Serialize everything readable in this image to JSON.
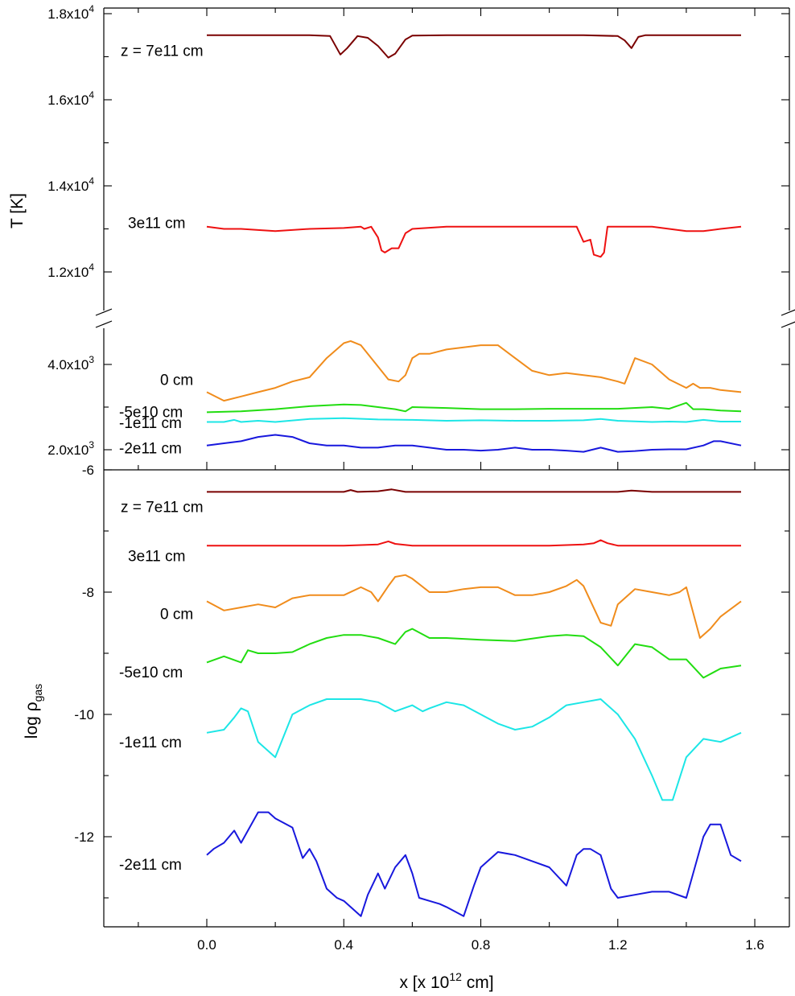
{
  "chart_data": [
    {
      "type": "line",
      "panel": "temperature",
      "ylabel": "T  [K]",
      "y_scale": "broken",
      "ylim_upper": [
        11000,
        18000
      ],
      "ylim_lower": [
        1800,
        4800
      ],
      "x_ticks": [
        0.0,
        0.4,
        0.8,
        1.2,
        1.6
      ],
      "y_ticks_upper": [
        {
          "mant": "1.2x10",
          "exp": "4",
          "value": 12000
        },
        {
          "mant": "1.4x10",
          "exp": "4",
          "value": 14000
        },
        {
          "mant": "1.6x10",
          "exp": "4",
          "value": 16000
        },
        {
          "mant": "1.8x10",
          "exp": "4",
          "value": 18000
        }
      ],
      "y_ticks_lower": [
        {
          "mant": "2.0x10",
          "exp": "3",
          "value": 2000
        },
        {
          "mant": "4.0x10",
          "exp": "3",
          "value": 4000
        }
      ],
      "series": [
        {
          "name": "z = 7e11 cm",
          "color": "#7a0000",
          "x": [
            0.0,
            0.1,
            0.2,
            0.3,
            0.36,
            0.39,
            0.41,
            0.44,
            0.47,
            0.5,
            0.53,
            0.55,
            0.58,
            0.6,
            0.7,
            0.8,
            0.9,
            1.0,
            1.1,
            1.2,
            1.22,
            1.24,
            1.26,
            1.28,
            1.35,
            1.45,
            1.56
          ],
          "y": [
            17500,
            17500,
            17500,
            17500,
            17480,
            17050,
            17200,
            17480,
            17440,
            17250,
            16980,
            17070,
            17400,
            17490,
            17500,
            17500,
            17500,
            17500,
            17500,
            17480,
            17380,
            17200,
            17460,
            17500,
            17500,
            17500,
            17500
          ]
        },
        {
          "name": "3e11 cm",
          "color": "#ee1111",
          "x": [
            0.0,
            0.05,
            0.1,
            0.2,
            0.3,
            0.4,
            0.45,
            0.46,
            0.48,
            0.5,
            0.51,
            0.52,
            0.54,
            0.56,
            0.58,
            0.6,
            0.7,
            0.8,
            0.9,
            1.0,
            1.08,
            1.1,
            1.12,
            1.13,
            1.15,
            1.16,
            1.17,
            1.2,
            1.3,
            1.35,
            1.4,
            1.45,
            1.5,
            1.56
          ],
          "y": [
            13050,
            13000,
            13000,
            12950,
            13000,
            13020,
            13050,
            13000,
            13050,
            12800,
            12500,
            12450,
            12550,
            12550,
            12900,
            13000,
            13050,
            13050,
            13050,
            13050,
            13050,
            12700,
            12750,
            12400,
            12350,
            12450,
            13050,
            13050,
            13050,
            13000,
            12950,
            12950,
            13000,
            13050
          ]
        },
        {
          "name": "0 cm",
          "color": "#f08c1c",
          "x": [
            0.0,
            0.05,
            0.1,
            0.15,
            0.2,
            0.25,
            0.3,
            0.35,
            0.4,
            0.42,
            0.45,
            0.5,
            0.53,
            0.56,
            0.58,
            0.6,
            0.62,
            0.65,
            0.7,
            0.75,
            0.8,
            0.85,
            0.9,
            0.95,
            1.0,
            1.05,
            1.1,
            1.15,
            1.2,
            1.22,
            1.25,
            1.3,
            1.35,
            1.4,
            1.42,
            1.44,
            1.47,
            1.5,
            1.56
          ],
          "y": [
            3350,
            3150,
            3250,
            3350,
            3450,
            3600,
            3700,
            4150,
            4500,
            4550,
            4450,
            3950,
            3650,
            3600,
            3750,
            4150,
            4250,
            4250,
            4350,
            4400,
            4450,
            4450,
            4150,
            3850,
            3750,
            3800,
            3750,
            3700,
            3600,
            3550,
            4150,
            4000,
            3650,
            3450,
            3550,
            3450,
            3450,
            3400,
            3350
          ]
        },
        {
          "name": "-5e10 cm",
          "color": "#22dd11",
          "x": [
            0.0,
            0.1,
            0.2,
            0.3,
            0.4,
            0.45,
            0.5,
            0.55,
            0.58,
            0.6,
            0.7,
            0.8,
            0.9,
            1.0,
            1.1,
            1.2,
            1.3,
            1.35,
            1.4,
            1.42,
            1.45,
            1.5,
            1.56
          ],
          "y": [
            2880,
            2900,
            2950,
            3020,
            3060,
            3050,
            3000,
            2950,
            2900,
            3000,
            2980,
            2950,
            2950,
            2960,
            2960,
            2960,
            3000,
            2960,
            3100,
            2950,
            2950,
            2920,
            2900
          ]
        },
        {
          "name": "-1e11 cm",
          "color": "#1ce6e6",
          "x": [
            0.0,
            0.05,
            0.08,
            0.1,
            0.15,
            0.2,
            0.3,
            0.4,
            0.5,
            0.6,
            0.7,
            0.8,
            0.9,
            1.0,
            1.1,
            1.15,
            1.2,
            1.3,
            1.35,
            1.4,
            1.45,
            1.5,
            1.56
          ],
          "y": [
            2650,
            2650,
            2700,
            2650,
            2680,
            2650,
            2720,
            2740,
            2710,
            2700,
            2680,
            2690,
            2680,
            2680,
            2690,
            2720,
            2680,
            2650,
            2660,
            2650,
            2700,
            2660,
            2660
          ]
        },
        {
          "name": "-2e11 cm",
          "color": "#1818dd",
          "x": [
            0.0,
            0.05,
            0.1,
            0.15,
            0.2,
            0.25,
            0.3,
            0.35,
            0.4,
            0.45,
            0.5,
            0.55,
            0.6,
            0.65,
            0.7,
            0.75,
            0.8,
            0.85,
            0.9,
            0.95,
            1.0,
            1.05,
            1.1,
            1.15,
            1.2,
            1.25,
            1.3,
            1.35,
            1.4,
            1.45,
            1.48,
            1.5,
            1.56
          ],
          "y": [
            2100,
            2150,
            2200,
            2300,
            2350,
            2300,
            2150,
            2100,
            2100,
            2050,
            2050,
            2100,
            2100,
            2050,
            2000,
            2000,
            1980,
            2000,
            2050,
            2000,
            2000,
            1980,
            1950,
            2050,
            1950,
            1970,
            2000,
            2010,
            2010,
            2100,
            2200,
            2200,
            2100
          ]
        }
      ]
    },
    {
      "type": "line",
      "panel": "density",
      "ylabel": "log ρ",
      "ylabel_sub": "gas",
      "ylim": [
        -13.5,
        -6
      ],
      "y_ticks": [
        {
          "label": "-6",
          "value": -6
        },
        {
          "label": "-8",
          "value": -8
        },
        {
          "label": "-10",
          "value": -10
        },
        {
          "label": "-12",
          "value": -12
        }
      ],
      "x_ticks": [
        0.0,
        0.4,
        0.8,
        1.2,
        1.6
      ],
      "xlabel": "x  [x 10",
      "xlabel_exp": "12",
      "xlabel_unit": " cm]",
      "series": [
        {
          "name": "z = 7e11 cm",
          "color": "#7a0000",
          "x": [
            0.0,
            0.2,
            0.4,
            0.42,
            0.44,
            0.5,
            0.54,
            0.58,
            0.7,
            1.0,
            1.2,
            1.24,
            1.3,
            1.56
          ],
          "y": [
            -6.36,
            -6.36,
            -6.36,
            -6.33,
            -6.36,
            -6.35,
            -6.32,
            -6.36,
            -6.36,
            -6.36,
            -6.36,
            -6.34,
            -6.36,
            -6.36
          ]
        },
        {
          "name": "3e11 cm",
          "color": "#ee1111",
          "x": [
            0.0,
            0.2,
            0.4,
            0.5,
            0.53,
            0.55,
            0.6,
            0.8,
            1.0,
            1.1,
            1.13,
            1.15,
            1.17,
            1.2,
            1.4,
            1.56
          ],
          "y": [
            -7.24,
            -7.24,
            -7.24,
            -7.22,
            -7.17,
            -7.21,
            -7.24,
            -7.24,
            -7.24,
            -7.22,
            -7.2,
            -7.15,
            -7.2,
            -7.24,
            -7.24,
            -7.24
          ]
        },
        {
          "name": "0 cm",
          "color": "#f08c1c",
          "x": [
            0.0,
            0.05,
            0.1,
            0.15,
            0.2,
            0.25,
            0.3,
            0.35,
            0.4,
            0.45,
            0.48,
            0.5,
            0.53,
            0.55,
            0.58,
            0.6,
            0.65,
            0.7,
            0.75,
            0.8,
            0.85,
            0.9,
            0.95,
            1.0,
            1.05,
            1.08,
            1.1,
            1.15,
            1.18,
            1.2,
            1.25,
            1.3,
            1.35,
            1.38,
            1.4,
            1.44,
            1.47,
            1.5,
            1.56
          ],
          "y": [
            -8.15,
            -8.3,
            -8.25,
            -8.2,
            -8.25,
            -8.1,
            -8.05,
            -8.05,
            -8.05,
            -7.92,
            -8.0,
            -8.15,
            -7.9,
            -7.75,
            -7.72,
            -7.78,
            -8.0,
            -8.0,
            -7.95,
            -7.92,
            -7.92,
            -8.05,
            -8.05,
            -8.0,
            -7.9,
            -7.8,
            -7.9,
            -8.5,
            -8.55,
            -8.2,
            -7.95,
            -8.0,
            -8.05,
            -8.0,
            -7.92,
            -8.75,
            -8.6,
            -8.4,
            -8.15
          ]
        },
        {
          "name": "-5e10 cm",
          "color": "#22dd11",
          "x": [
            0.0,
            0.05,
            0.1,
            0.12,
            0.15,
            0.2,
            0.25,
            0.3,
            0.35,
            0.4,
            0.45,
            0.5,
            0.55,
            0.58,
            0.6,
            0.65,
            0.7,
            0.8,
            0.9,
            1.0,
            1.05,
            1.1,
            1.15,
            1.2,
            1.25,
            1.3,
            1.35,
            1.4,
            1.45,
            1.5,
            1.56
          ],
          "y": [
            -9.15,
            -9.05,
            -9.15,
            -8.95,
            -9.0,
            -9.0,
            -8.98,
            -8.85,
            -8.75,
            -8.7,
            -8.7,
            -8.75,
            -8.85,
            -8.65,
            -8.6,
            -8.75,
            -8.75,
            -8.78,
            -8.8,
            -8.72,
            -8.7,
            -8.72,
            -8.9,
            -9.2,
            -8.85,
            -8.9,
            -9.1,
            -9.1,
            -9.4,
            -9.25,
            -9.2
          ]
        },
        {
          "name": "-1e11 cm",
          "color": "#1ce6e6",
          "x": [
            0.0,
            0.05,
            0.08,
            0.1,
            0.12,
            0.15,
            0.2,
            0.25,
            0.3,
            0.35,
            0.4,
            0.45,
            0.5,
            0.55,
            0.6,
            0.63,
            0.65,
            0.7,
            0.75,
            0.8,
            0.85,
            0.9,
            0.95,
            1.0,
            1.05,
            1.1,
            1.15,
            1.2,
            1.25,
            1.3,
            1.33,
            1.36,
            1.4,
            1.45,
            1.5,
            1.56
          ],
          "y": [
            -10.3,
            -10.25,
            -10.05,
            -9.9,
            -9.95,
            -10.45,
            -10.7,
            -10.0,
            -9.85,
            -9.75,
            -9.75,
            -9.75,
            -9.8,
            -9.95,
            -9.85,
            -9.95,
            -9.9,
            -9.8,
            -9.85,
            -10.0,
            -10.15,
            -10.25,
            -10.2,
            -10.05,
            -9.85,
            -9.8,
            -9.75,
            -10.0,
            -10.4,
            -11.0,
            -11.4,
            -11.4,
            -10.7,
            -10.4,
            -10.45,
            -10.3
          ]
        },
        {
          "name": "-2e11 cm",
          "color": "#1818dd",
          "x": [
            0.0,
            0.02,
            0.05,
            0.08,
            0.1,
            0.12,
            0.15,
            0.18,
            0.2,
            0.25,
            0.28,
            0.3,
            0.32,
            0.35,
            0.38,
            0.4,
            0.45,
            0.47,
            0.5,
            0.52,
            0.55,
            0.58,
            0.6,
            0.62,
            0.65,
            0.68,
            0.7,
            0.75,
            0.78,
            0.8,
            0.85,
            0.9,
            0.95,
            1.0,
            1.05,
            1.08,
            1.1,
            1.12,
            1.15,
            1.18,
            1.2,
            1.25,
            1.3,
            1.35,
            1.4,
            1.45,
            1.47,
            1.5,
            1.53,
            1.56
          ],
          "y": [
            -12.3,
            -12.2,
            -12.1,
            -11.9,
            -12.1,
            -11.9,
            -11.6,
            -11.6,
            -11.7,
            -11.85,
            -12.35,
            -12.2,
            -12.4,
            -12.85,
            -13.0,
            -13.05,
            -13.3,
            -12.95,
            -12.6,
            -12.85,
            -12.5,
            -12.3,
            -12.6,
            -13.0,
            -13.05,
            -13.1,
            -13.15,
            -13.3,
            -12.8,
            -12.5,
            -12.25,
            -12.3,
            -12.4,
            -12.5,
            -12.8,
            -12.3,
            -12.2,
            -12.2,
            -12.3,
            -12.85,
            -13.0,
            -12.95,
            -12.9,
            -12.9,
            -13.0,
            -12.0,
            -11.8,
            -11.8,
            -12.3,
            -12.4
          ]
        }
      ]
    }
  ]
}
